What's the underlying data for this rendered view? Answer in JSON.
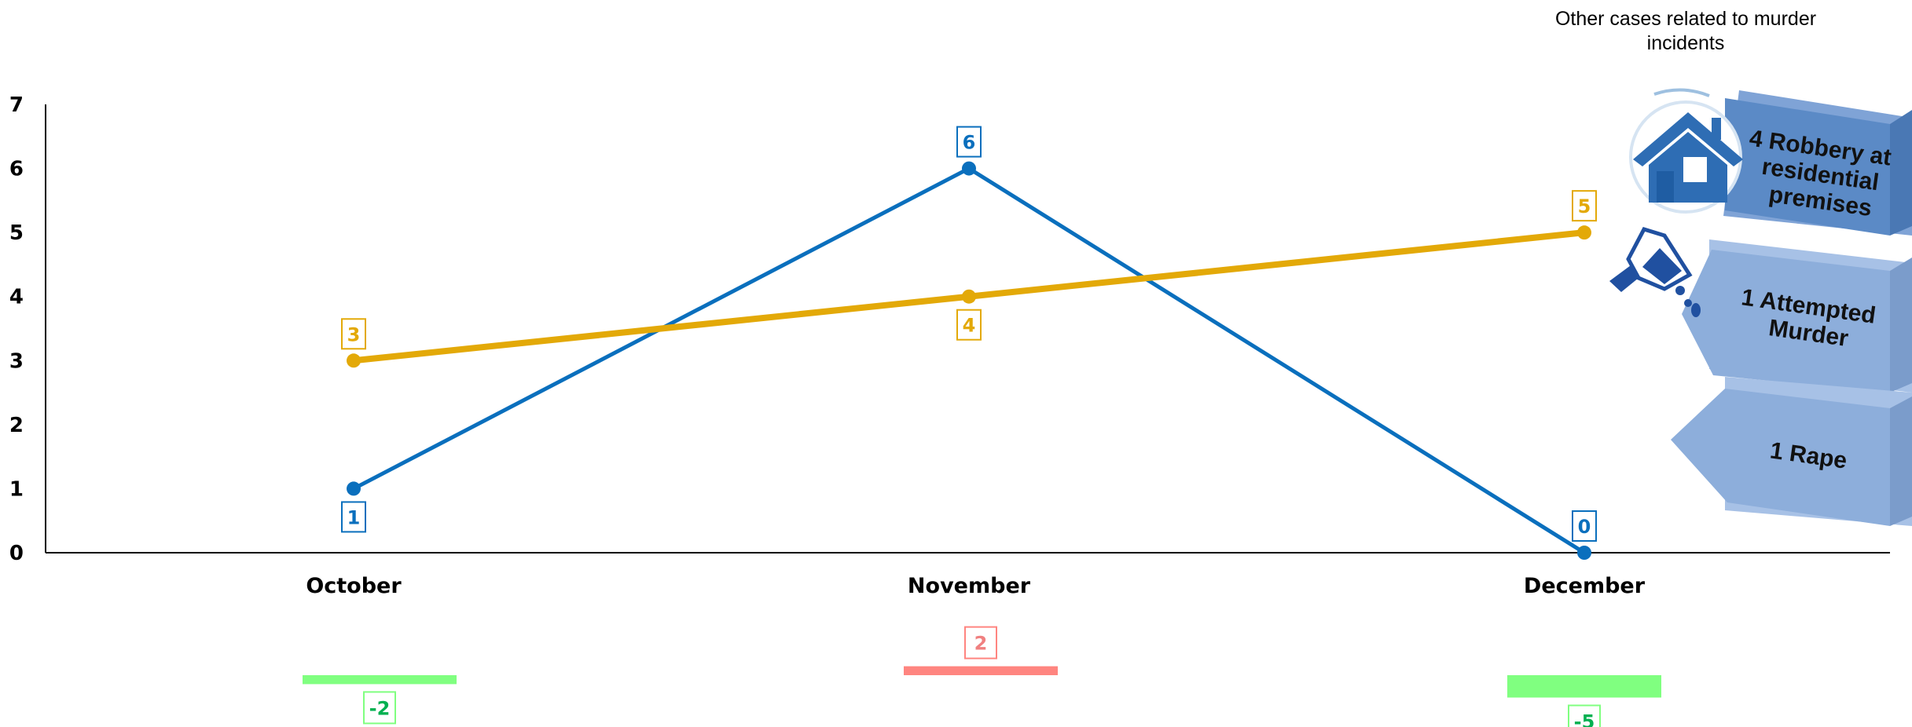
{
  "chart_data": {
    "type": "line",
    "categories": [
      "October",
      "November",
      "December"
    ],
    "ylim": [
      0,
      7
    ],
    "yticks": [
      0,
      1,
      2,
      3,
      4,
      5,
      6,
      7
    ],
    "grid": false,
    "legend": "none",
    "series": [
      {
        "color": "#0a6fbd",
        "values": [
          1,
          6,
          0
        ],
        "labels": [
          "1",
          "6",
          "0"
        ]
      },
      {
        "color": "#e3a908",
        "values": [
          3,
          4,
          5
        ],
        "labels": [
          "3",
          "4",
          "5"
        ]
      }
    ],
    "difference": {
      "values": [
        -2,
        2,
        -5
      ],
      "labels": [
        "-2",
        "2",
        "-5"
      ],
      "colors": {
        "negative_bar": "#80ff80",
        "negative_text": "#00b050",
        "positive_bar": "#ff8580",
        "positive_text": "#f08080"
      }
    }
  },
  "side_panel": {
    "title_lines": [
      "Other cases related to murder",
      "incidents"
    ],
    "cards": [
      {
        "lines": [
          "4 Robbery at",
          "residential",
          "premises"
        ],
        "icon": "house-icon",
        "color": "#5b8ac6"
      },
      {
        "lines": [
          "1 Attempted",
          "Murder"
        ],
        "icon": "knife-icon",
        "color": "#8daedb"
      },
      {
        "lines": [
          "1 Rape"
        ],
        "icon": "",
        "color": "#8daedb"
      }
    ]
  }
}
